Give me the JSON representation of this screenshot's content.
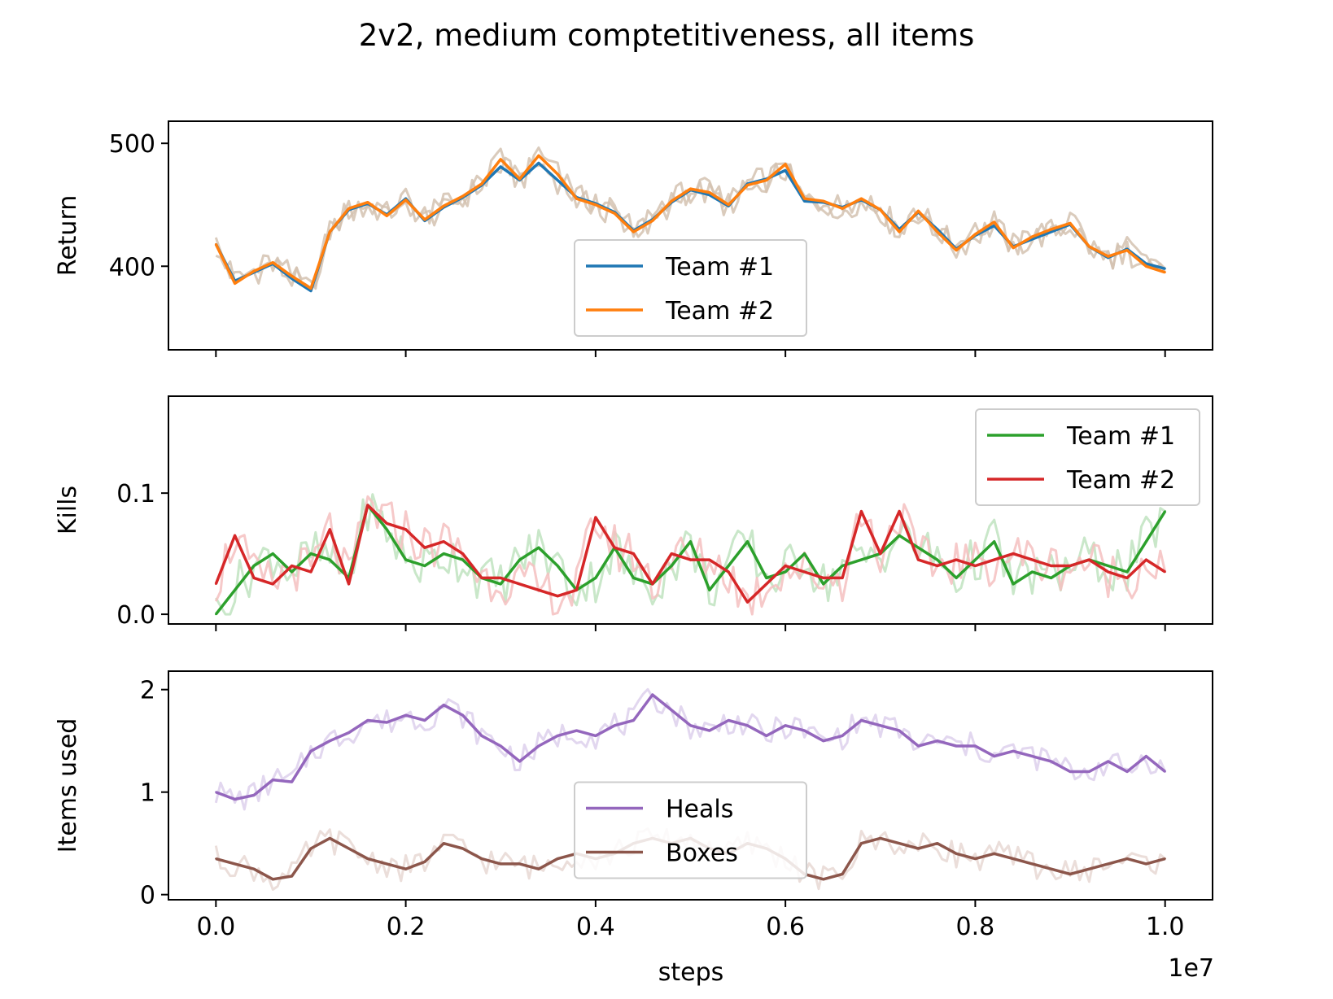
{
  "chart_data": {
    "title": "2v2, medium comptetitiveness, all items",
    "x_label": "steps",
    "x_offset_text": "1e7",
    "x_ticks": [
      "0.0",
      "0.2",
      "0.4",
      "0.6",
      "0.8",
      "1.0"
    ],
    "x_range": [
      -0.05,
      1.05
    ],
    "panels": [
      {
        "type": "line",
        "ylabel": "Return",
        "ylim": [
          332,
          518
        ],
        "yticks": [
          "400",
          "500"
        ],
        "ytick_values": [
          400,
          500
        ],
        "legend_position": "lower center",
        "x": [
          0.0,
          0.02,
          0.04,
          0.06,
          0.08,
          0.1,
          0.12,
          0.14,
          0.16,
          0.18,
          0.2,
          0.22,
          0.24,
          0.26,
          0.28,
          0.3,
          0.32,
          0.34,
          0.36,
          0.38,
          0.4,
          0.42,
          0.44,
          0.46,
          0.48,
          0.5,
          0.52,
          0.54,
          0.56,
          0.58,
          0.6,
          0.62,
          0.64,
          0.66,
          0.68,
          0.7,
          0.72,
          0.74,
          0.76,
          0.78,
          0.8,
          0.82,
          0.84,
          0.86,
          0.88,
          0.9,
          0.92,
          0.94,
          0.96,
          0.98,
          1.0
        ],
        "series": [
          {
            "name": "Team #1",
            "color": "#1f77b4",
            "raw_color": "#d4c2b0",
            "values": [
              418,
              388,
              395,
              402,
              390,
              380,
              428,
              446,
              451,
              442,
              455,
              437,
              448,
              456,
              466,
              481,
              470,
              484,
              470,
              456,
              451,
              444,
              429,
              438,
              452,
              462,
              458,
              449,
              467,
              471,
              478,
              453,
              452,
              448,
              454,
              446,
              430,
              444,
              430,
              414,
              425,
              433,
              416,
              422,
              428,
              434,
              416,
              407,
              414,
              402,
              398
            ]
          },
          {
            "name": "Team #2",
            "color": "#ff7f0e",
            "raw_color": "#d4c2b0",
            "values": [
              418,
              386,
              396,
              403,
              392,
              382,
              428,
              447,
              452,
              441,
              454,
              438,
              449,
              457,
              467,
              487,
              471,
              490,
              475,
              455,
              450,
              443,
              428,
              437,
              453,
              463,
              460,
              450,
              466,
              470,
              483,
              455,
              453,
              447,
              455,
              446,
              428,
              445,
              428,
              413,
              426,
              436,
              415,
              424,
              430,
              435,
              416,
              408,
              413,
              400,
              395
            ]
          }
        ]
      },
      {
        "type": "line",
        "ylabel": "Kills",
        "ylim": [
          -0.008,
          0.18
        ],
        "yticks": [
          "0.0",
          "0.1"
        ],
        "ytick_values": [
          0.0,
          0.1
        ],
        "legend_position": "upper right",
        "x": [
          0.0,
          0.02,
          0.04,
          0.06,
          0.08,
          0.1,
          0.12,
          0.14,
          0.16,
          0.18,
          0.2,
          0.22,
          0.24,
          0.26,
          0.28,
          0.3,
          0.32,
          0.34,
          0.36,
          0.38,
          0.4,
          0.42,
          0.44,
          0.46,
          0.48,
          0.5,
          0.52,
          0.54,
          0.56,
          0.58,
          0.6,
          0.62,
          0.64,
          0.66,
          0.68,
          0.7,
          0.72,
          0.74,
          0.76,
          0.78,
          0.8,
          0.82,
          0.84,
          0.86,
          0.88,
          0.9,
          0.92,
          0.94,
          0.96,
          0.98,
          1.0
        ],
        "series": [
          {
            "name": "Team #1",
            "color": "#2ca02c",
            "raw_color": "#bfe3bf",
            "values": [
              0.0,
              0.02,
              0.04,
              0.05,
              0.035,
              0.05,
              0.045,
              0.03,
              0.09,
              0.07,
              0.045,
              0.04,
              0.05,
              0.045,
              0.03,
              0.025,
              0.045,
              0.055,
              0.04,
              0.02,
              0.03,
              0.055,
              0.03,
              0.025,
              0.04,
              0.06,
              0.02,
              0.04,
              0.06,
              0.03,
              0.035,
              0.05,
              0.025,
              0.04,
              0.045,
              0.05,
              0.065,
              0.055,
              0.045,
              0.03,
              0.045,
              0.06,
              0.025,
              0.035,
              0.03,
              0.04,
              0.045,
              0.04,
              0.035,
              0.06,
              0.085
            ]
          },
          {
            "name": "Team #2",
            "color": "#d62728",
            "raw_color": "#f4bfbf",
            "values": [
              0.025,
              0.065,
              0.03,
              0.025,
              0.04,
              0.035,
              0.07,
              0.025,
              0.09,
              0.075,
              0.07,
              0.055,
              0.06,
              0.05,
              0.03,
              0.03,
              0.025,
              0.02,
              0.015,
              0.02,
              0.08,
              0.055,
              0.05,
              0.025,
              0.05,
              0.045,
              0.045,
              0.035,
              0.01,
              0.025,
              0.04,
              0.035,
              0.03,
              0.03,
              0.085,
              0.05,
              0.085,
              0.045,
              0.04,
              0.045,
              0.04,
              0.045,
              0.05,
              0.045,
              0.04,
              0.04,
              0.045,
              0.035,
              0.03,
              0.045,
              0.035
            ]
          }
        ]
      },
      {
        "type": "line",
        "ylabel": "Items used",
        "ylim": [
          -0.05,
          2.18
        ],
        "yticks": [
          "0",
          "1",
          "2"
        ],
        "ytick_values": [
          0,
          1,
          2
        ],
        "legend_position": "center",
        "x": [
          0.0,
          0.02,
          0.04,
          0.06,
          0.08,
          0.1,
          0.12,
          0.14,
          0.16,
          0.18,
          0.2,
          0.22,
          0.24,
          0.26,
          0.28,
          0.3,
          0.32,
          0.34,
          0.36,
          0.38,
          0.4,
          0.42,
          0.44,
          0.46,
          0.48,
          0.5,
          0.52,
          0.54,
          0.56,
          0.58,
          0.6,
          0.62,
          0.64,
          0.66,
          0.68,
          0.7,
          0.72,
          0.74,
          0.76,
          0.78,
          0.8,
          0.82,
          0.84,
          0.86,
          0.88,
          0.9,
          0.92,
          0.94,
          0.96,
          0.98,
          1.0
        ],
        "series": [
          {
            "name": "Heals",
            "color": "#9467bd",
            "raw_color": "#ddd0ec",
            "values": [
              1.0,
              0.93,
              0.97,
              1.12,
              1.1,
              1.4,
              1.5,
              1.58,
              1.7,
              1.68,
              1.75,
              1.7,
              1.85,
              1.75,
              1.55,
              1.45,
              1.3,
              1.45,
              1.55,
              1.6,
              1.55,
              1.65,
              1.7,
              1.95,
              1.8,
              1.65,
              1.6,
              1.7,
              1.65,
              1.55,
              1.65,
              1.6,
              1.5,
              1.55,
              1.7,
              1.65,
              1.6,
              1.45,
              1.5,
              1.45,
              1.45,
              1.35,
              1.4,
              1.35,
              1.3,
              1.2,
              1.2,
              1.3,
              1.2,
              1.35,
              1.2
            ]
          },
          {
            "name": "Boxes",
            "color": "#8c564b",
            "raw_color": "#e8d8d3",
            "values": [
              0.35,
              0.3,
              0.25,
              0.15,
              0.18,
              0.45,
              0.55,
              0.45,
              0.35,
              0.3,
              0.25,
              0.32,
              0.5,
              0.45,
              0.35,
              0.3,
              0.3,
              0.25,
              0.35,
              0.4,
              0.35,
              0.4,
              0.5,
              0.55,
              0.5,
              0.55,
              0.45,
              0.4,
              0.5,
              0.45,
              0.35,
              0.2,
              0.15,
              0.2,
              0.5,
              0.55,
              0.5,
              0.45,
              0.5,
              0.4,
              0.35,
              0.4,
              0.35,
              0.3,
              0.25,
              0.2,
              0.25,
              0.3,
              0.35,
              0.3,
              0.35
            ]
          }
        ]
      }
    ]
  }
}
